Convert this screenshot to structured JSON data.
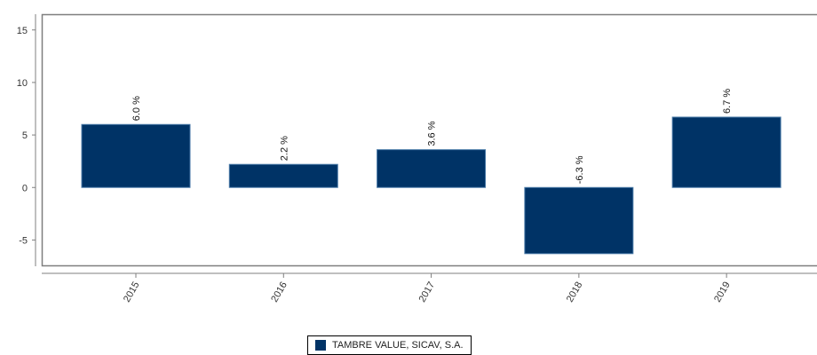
{
  "chart_data": {
    "type": "bar",
    "title": "",
    "xlabel": "",
    "ylabel": "",
    "categories": [
      "2015",
      "2016",
      "2017",
      "2018",
      "2019"
    ],
    "series": [
      {
        "name": "TAMBRE VALUE, SICAV, S.A.",
        "values": [
          6.0,
          2.2,
          3.6,
          -6.3,
          6.7
        ],
        "labels": [
          "6.0 %",
          "2.2 %",
          "3.6 %",
          "-6.3 %",
          "6.7 %"
        ],
        "color": "#003366"
      }
    ],
    "ylim": [
      -7.5,
      16.5
    ],
    "yticks": [
      "15",
      "10",
      "5",
      "0",
      "-5"
    ],
    "grid": false,
    "legend": "bottom-center"
  }
}
